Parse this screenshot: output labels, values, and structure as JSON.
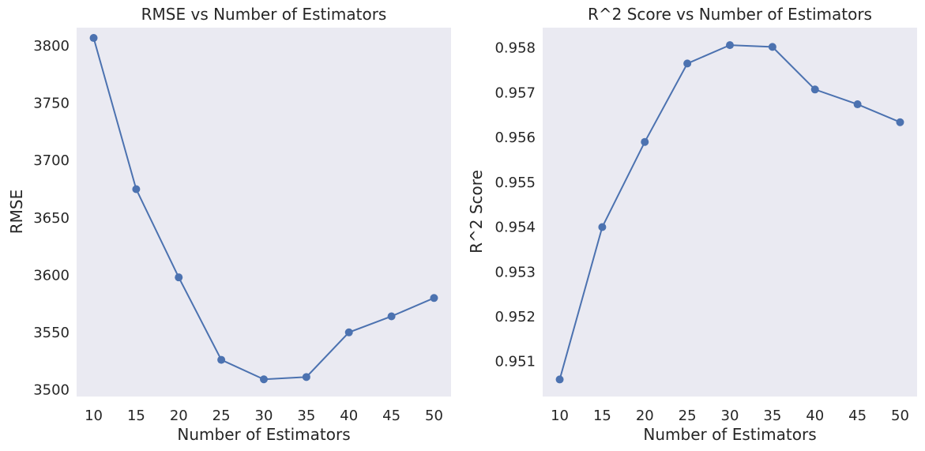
{
  "chart_data": [
    {
      "type": "line",
      "title": "RMSE vs Number of Estimators",
      "xlabel": "Number of Estimators",
      "ylabel": "RMSE",
      "x": [
        10,
        15,
        20,
        25,
        30,
        35,
        40,
        45,
        50
      ],
      "series": [
        {
          "values": [
            3807,
            3675,
            3598,
            3526,
            3509,
            3511,
            3550,
            3564,
            3580
          ],
          "color": "#4c72b0"
        }
      ],
      "xticks": [
        "10",
        "15",
        "20",
        "25",
        "30",
        "35",
        "40",
        "45",
        "50"
      ],
      "yticks": [
        "3500",
        "3550",
        "3600",
        "3650",
        "3700",
        "3750",
        "3800"
      ],
      "xlim": [
        8,
        52
      ],
      "ylim": [
        3494,
        3816
      ],
      "grid": false,
      "marker": "circle"
    },
    {
      "type": "line",
      "title": "R^2 Score vs Number of Estimators",
      "xlabel": "Number of Estimators",
      "ylabel": "R^2 Score",
      "x": [
        10,
        15,
        20,
        25,
        30,
        35,
        40,
        45,
        50
      ],
      "series": [
        {
          "values": [
            0.9506,
            0.954,
            0.9559,
            0.95765,
            0.95806,
            0.95802,
            0.95707,
            0.95674,
            0.95634
          ],
          "color": "#4c72b0"
        }
      ],
      "xticks": [
        "10",
        "15",
        "20",
        "25",
        "30",
        "35",
        "40",
        "45",
        "50"
      ],
      "yticks": [
        "0.951",
        "0.952",
        "0.953",
        "0.954",
        "0.955",
        "0.956",
        "0.957",
        "0.958"
      ],
      "xlim": [
        8,
        52
      ],
      "ylim": [
        0.95022,
        0.95845
      ],
      "grid": false,
      "marker": "circle"
    }
  ]
}
